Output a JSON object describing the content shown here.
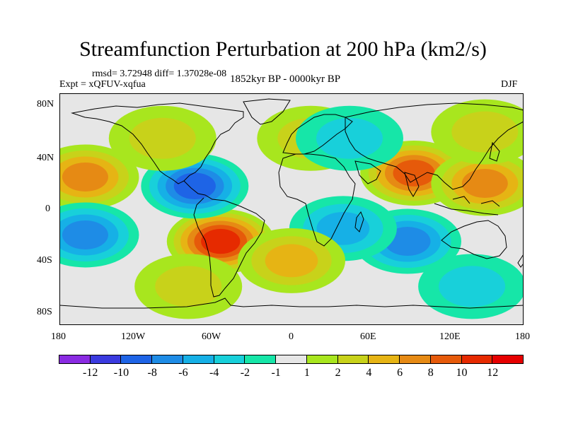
{
  "title": "Streamfunction Perturbation at 200 hPa (km2/s)",
  "stats": "rmsd= 3.72948 diff= 1.37028e-08",
  "expt": "Expt = xQFUV-xqfua",
  "period": "1852kyr BP - 0000kyr BP",
  "season": "DJF",
  "map": {
    "projection": "cylindrical-equidistant",
    "lon_range": [
      -180,
      180
    ],
    "lat_range": [
      -90,
      90
    ],
    "lon_tick_labels": [
      "180",
      "120W",
      "60W",
      "0",
      "60E",
      "120E",
      "180"
    ],
    "lat_tick_labels": [
      "80N",
      "40N",
      "0",
      "40S",
      "80S"
    ],
    "coastlines": "black",
    "missing_fill": "#e6e6e6"
  },
  "colorbar": {
    "labels": [
      "-12",
      "-10",
      "-8",
      "-6",
      "-4",
      "-2",
      "-1",
      "1",
      "2",
      "4",
      "6",
      "8",
      "10",
      "12"
    ],
    "colors": [
      "#8a2be2",
      "#3a3adf",
      "#1e64e6",
      "#1e8ce6",
      "#16b0e6",
      "#18d0da",
      "#16e6a8",
      "#e6e6e6",
      "#a8e61e",
      "#c8d21a",
      "#e6b414",
      "#e68a14",
      "#e65a0a",
      "#e62a00",
      "#e60000"
    ]
  },
  "field_blobs": [
    {
      "lon": -160,
      "lat": 25,
      "value": 7
    },
    {
      "lon": -55,
      "lat": -25,
      "value": 11
    },
    {
      "lon": -75,
      "lat": 18,
      "value": -8
    },
    {
      "lon": -100,
      "lat": 55,
      "value": 3
    },
    {
      "lon": 95,
      "lat": 28,
      "value": 8
    },
    {
      "lon": 150,
      "lat": 20,
      "value": 6
    },
    {
      "lon": 90,
      "lat": -25,
      "value": -7
    },
    {
      "lon": 40,
      "lat": -15,
      "value": -5
    },
    {
      "lon": -160,
      "lat": -20,
      "value": -6
    },
    {
      "lon": 0,
      "lat": -40,
      "value": 4
    },
    {
      "lon": 15,
      "lat": 55,
      "value": 3
    },
    {
      "lon": 45,
      "lat": 55,
      "value": -3
    },
    {
      "lon": 140,
      "lat": -60,
      "value": -3
    },
    {
      "lon": -80,
      "lat": -60,
      "value": 2
    },
    {
      "lon": 150,
      "lat": 60,
      "value": 3
    }
  ]
}
